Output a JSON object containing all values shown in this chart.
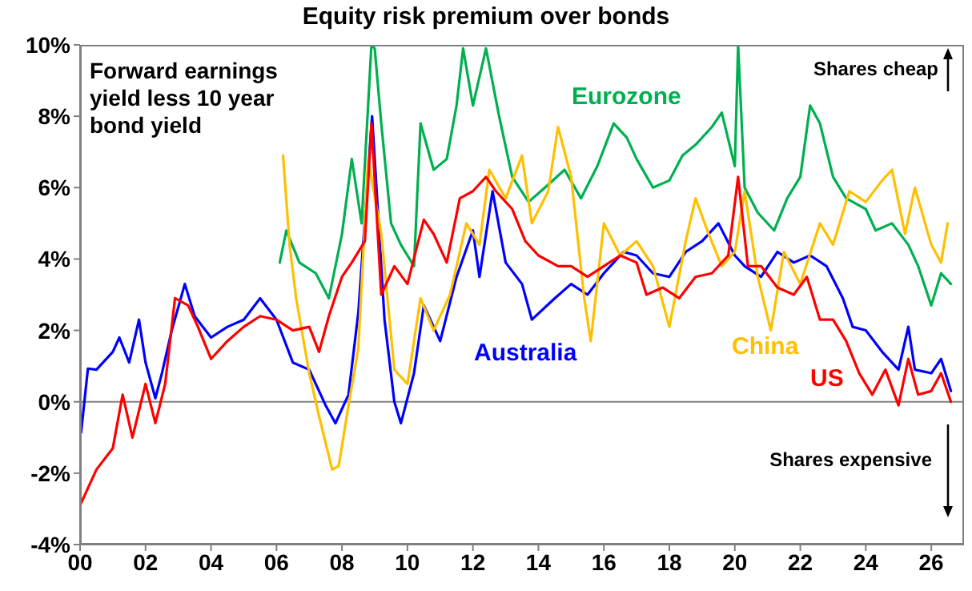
{
  "chart_data": {
    "type": "line",
    "title": "Equity risk premium over bonds",
    "annotations": [
      "Forward earnings yield less 10 year bond yield",
      "Shares cheap",
      "Shares expensive"
    ],
    "xlim": [
      0,
      27
    ],
    "xticks": [
      {
        "value": 0,
        "label": "00"
      },
      {
        "value": 2,
        "label": "02"
      },
      {
        "value": 4,
        "label": "04"
      },
      {
        "value": 6,
        "label": "06"
      },
      {
        "value": 8,
        "label": "08"
      },
      {
        "value": 10,
        "label": "10"
      },
      {
        "value": 12,
        "label": "12"
      },
      {
        "value": 14,
        "label": "14"
      },
      {
        "value": 16,
        "label": "16"
      },
      {
        "value": 18,
        "label": "18"
      },
      {
        "value": 20,
        "label": "20"
      },
      {
        "value": 22,
        "label": "22"
      },
      {
        "value": 24,
        "label": "24"
      },
      {
        "value": 26,
        "label": "26"
      }
    ],
    "ylim": [
      -4,
      10
    ],
    "yticks": [
      {
        "value": -4,
        "label": "-4%"
      },
      {
        "value": -2,
        "label": "-2%"
      },
      {
        "value": 0,
        "label": "0%"
      },
      {
        "value": 2,
        "label": "2%"
      },
      {
        "value": 4,
        "label": "4%"
      },
      {
        "value": 6,
        "label": "6%"
      },
      {
        "value": 8,
        "label": "8%"
      },
      {
        "value": 10,
        "label": "10%"
      }
    ],
    "ref_lines": [
      {
        "axis": "y",
        "value": 0,
        "color": "#808080"
      }
    ],
    "grid": false,
    "legend": false,
    "marker": "none",
    "line_style": "solid",
    "series": [
      {
        "name": "Eurozone",
        "color": "#00b050",
        "x": [
          6.1,
          6.3,
          6.7,
          7.2,
          7.6,
          8,
          8.3,
          8.6,
          8.9,
          9,
          9.2,
          9.5,
          9.8,
          10.2,
          10.4,
          10.8,
          11.2,
          11.5,
          11.7,
          12,
          12.4,
          12.8,
          13.2,
          13.7,
          14.2,
          14.8,
          15.3,
          15.8,
          16.3,
          16.7,
          17,
          17.5,
          18,
          18.4,
          18.8,
          19.3,
          19.6,
          20,
          20.1,
          20.3,
          20.7,
          21.2,
          21.6,
          22,
          22.3,
          22.6,
          23,
          23.4,
          24,
          24.3,
          24.8,
          25.3,
          25.6,
          26,
          26.3,
          26.6
        ],
        "values": [
          3.9,
          4.8,
          3.9,
          3.6,
          2.9,
          4.7,
          6.8,
          5,
          10,
          9.9,
          7.8,
          5,
          4.4,
          3.8,
          7.8,
          6.5,
          6.8,
          8.3,
          9.9,
          8.3,
          9.9,
          8,
          6.3,
          5.6,
          6,
          6.5,
          5.7,
          6.6,
          7.8,
          7.4,
          6.8,
          6,
          6.2,
          6.9,
          7.2,
          7.7,
          8.1,
          6.6,
          10,
          6,
          5.3,
          4.8,
          5.7,
          6.3,
          8.3,
          7.8,
          6.3,
          5.7,
          5.4,
          4.8,
          5,
          4.4,
          3.8,
          2.7,
          3.6,
          3.3
        ]
      },
      {
        "name": "Australia",
        "color": "#0000ff",
        "x": [
          0.03,
          0.24,
          0.5,
          1,
          1.2,
          1.5,
          1.8,
          2,
          2.3,
          2.5,
          2.8,
          3.2,
          3.5,
          4,
          4.5,
          5,
          5.5,
          6,
          6.5,
          7,
          7.5,
          7.8,
          8.2,
          8.5,
          8.92,
          9.3,
          9.6,
          9.8,
          10.2,
          10.5,
          11,
          11.5,
          12,
          12.2,
          12.6,
          13,
          13.5,
          13.8,
          14.5,
          15,
          15.5,
          16,
          16.6,
          17,
          17.5,
          18,
          18.5,
          19,
          19.5,
          20,
          20.3,
          20.8,
          21.3,
          21.8,
          22.3,
          22.8,
          23.3,
          23.6,
          24,
          24.5,
          25,
          25.3,
          25.5,
          26,
          26.3,
          26.6
        ],
        "values": [
          -0.87,
          0.93,
          0.9,
          1.4,
          1.8,
          1.1,
          2.3,
          1.1,
          0.1,
          0.8,
          2,
          3.3,
          2.4,
          1.8,
          2.1,
          2.3,
          2.9,
          2.3,
          1.1,
          0.9,
          -0.1,
          -0.6,
          0.2,
          2.5,
          8,
          2.3,
          0,
          -0.6,
          0.8,
          2.7,
          1.7,
          3.5,
          4.8,
          3.5,
          5.9,
          3.9,
          3.3,
          2.3,
          2.9,
          3.3,
          3,
          3.6,
          4.2,
          4.1,
          3.6,
          3.5,
          4.2,
          4.5,
          5,
          4.1,
          3.8,
          3.5,
          4.2,
          3.9,
          4.1,
          3.8,
          2.9,
          2.1,
          2,
          1.4,
          0.9,
          2.1,
          0.9,
          0.8,
          1.2,
          0.3
        ]
      },
      {
        "name": "China",
        "color": "#ffc000",
        "x": [
          6.2,
          6.4,
          6.6,
          7,
          7.3,
          7.7,
          7.9,
          8.2,
          8.5,
          8.8,
          9.2,
          9.6,
          10,
          10.4,
          10.8,
          11.3,
          11.8,
          12.2,
          12.5,
          13,
          13.5,
          13.8,
          14.3,
          14.6,
          15,
          15.4,
          15.6,
          16,
          16.5,
          17,
          17.5,
          18,
          18.5,
          18.8,
          19.2,
          19.6,
          20,
          20.3,
          20.7,
          21.1,
          21.5,
          22,
          22.6,
          23,
          23.5,
          24,
          24.5,
          24.8,
          25.2,
          25.5,
          26,
          26.3,
          26.5
        ],
        "values": [
          6.9,
          4.4,
          2.9,
          0.8,
          -0.4,
          -1.9,
          -1.8,
          -0.1,
          1.5,
          6.8,
          4.7,
          0.9,
          0.5,
          2.9,
          2,
          3,
          5,
          4.4,
          6.5,
          5.7,
          6.9,
          5,
          5.9,
          7.7,
          6.3,
          2.9,
          1.7,
          5,
          4.1,
          4.5,
          3.8,
          2.1,
          4.5,
          5.7,
          4.7,
          3.8,
          4.2,
          5.9,
          3.5,
          2,
          4.2,
          3.3,
          5,
          4.4,
          5.9,
          5.6,
          6.2,
          6.5,
          4.7,
          6,
          4.4,
          3.9,
          5
        ]
      },
      {
        "name": "US",
        "color": "#ff0000",
        "x": [
          0,
          0.5,
          1,
          1.3,
          1.6,
          2,
          2.3,
          2.6,
          2.9,
          3.3,
          3.6,
          4,
          4.5,
          5,
          5.5,
          6,
          6.5,
          7,
          7.3,
          7.6,
          8,
          8.3,
          8.7,
          8.9,
          9.2,
          9.6,
          10,
          10.5,
          10.8,
          11.2,
          11.6,
          12,
          12.4,
          12.7,
          13.2,
          13.6,
          14,
          14.6,
          15,
          15.5,
          16,
          16.5,
          17,
          17.3,
          17.8,
          18.3,
          18.8,
          19.3,
          19.8,
          20.1,
          20.4,
          20.8,
          21.3,
          21.8,
          22.2,
          22.6,
          23,
          23.4,
          23.8,
          24.2,
          24.6,
          25,
          25.3,
          25.6,
          26,
          26.3,
          26.6
        ],
        "values": [
          -2.9,
          -1.9,
          -1.3,
          0.2,
          -1,
          0.5,
          -0.6,
          0.5,
          2.9,
          2.7,
          2.1,
          1.2,
          1.7,
          2.1,
          2.4,
          2.3,
          2,
          2.1,
          1.4,
          2.4,
          3.5,
          3.9,
          4.5,
          7.8,
          3,
          3.8,
          3.3,
          5.1,
          4.7,
          3.9,
          5.7,
          5.9,
          6.3,
          5.9,
          5.4,
          4.5,
          4.1,
          3.8,
          3.8,
          3.5,
          3.8,
          4.1,
          3.9,
          3,
          3.2,
          2.9,
          3.5,
          3.6,
          4.1,
          6.3,
          3.8,
          3.8,
          3.2,
          3,
          3.5,
          2.3,
          2.3,
          1.7,
          0.8,
          0.2,
          0.9,
          -0.1,
          1.2,
          0.2,
          0.3,
          0.8,
          0
        ]
      }
    ]
  }
}
